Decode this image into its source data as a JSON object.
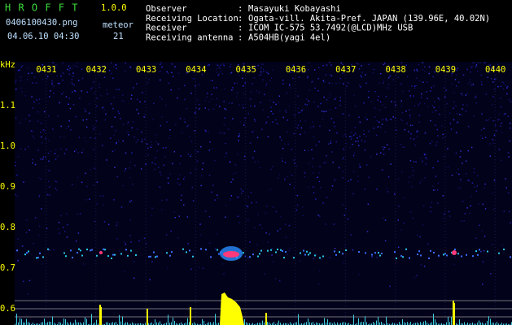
{
  "header": {
    "title": "H R O F F T",
    "version": "1.0.0",
    "filename": "0406100430.png",
    "datetime": "04.06.10 04:30",
    "meteor_label": "meteor",
    "meteor_count": "21"
  },
  "info": {
    "rows": [
      {
        "label": "Observer",
        "separator": ":",
        "value": "Masayuki Kobayashi"
      },
      {
        "label": "Receiving Location",
        "separator": ":",
        "value": "Ogata-vill. Akita-Pref. JAPAN (139.96E, 40.02N)"
      },
      {
        "label": "Receiver",
        "separator": ":",
        "value": "ICOM IC-575 53.7492(@LCD)MHz USB"
      },
      {
        "label": "Receiving antenna",
        "separator": ":",
        "value": "A504HB(yagi 4el)"
      }
    ]
  },
  "time_axis": {
    "labels": [
      "0431",
      "0432",
      "0433",
      "0434",
      "0435",
      "0436",
      "0437",
      "0438",
      "0439",
      "0440"
    ]
  },
  "freq_axis": {
    "unit": "kHz",
    "labels": [
      "1.1",
      "1.0",
      "0.9",
      "0.8",
      "0.7",
      "0.6"
    ]
  }
}
